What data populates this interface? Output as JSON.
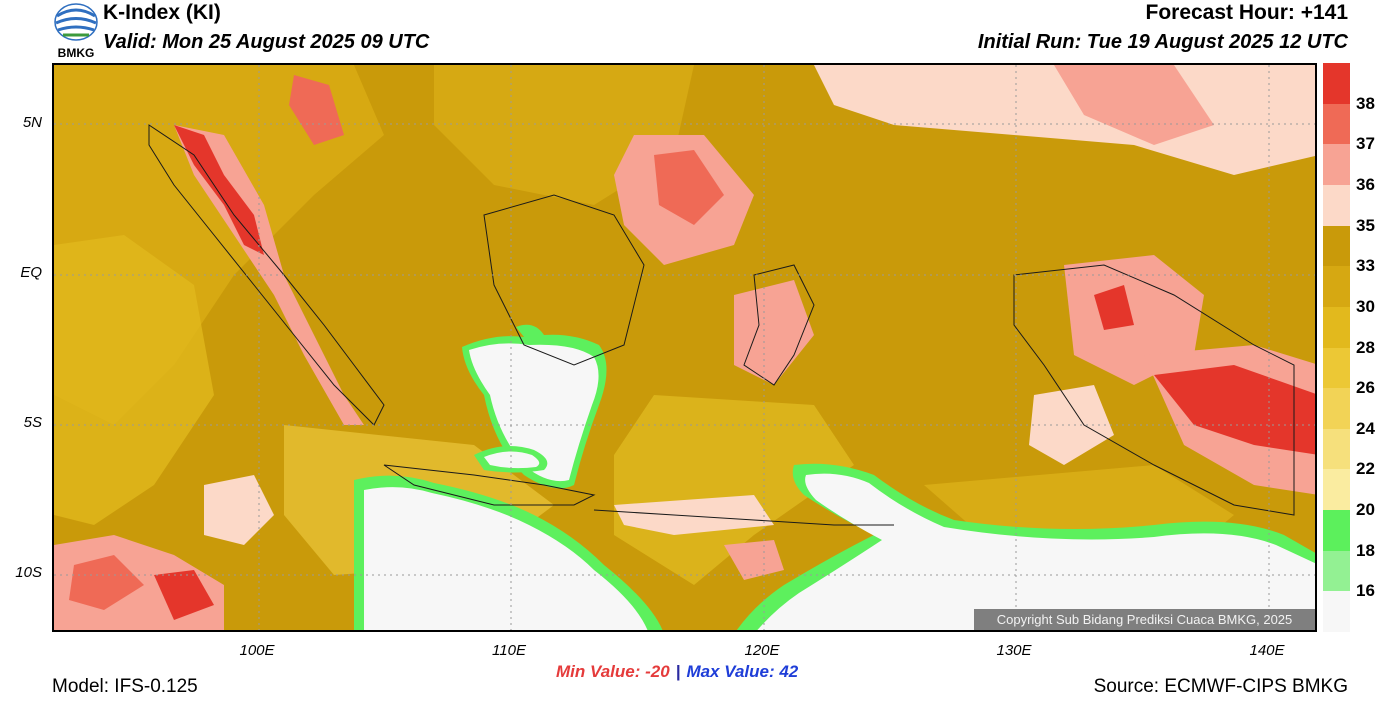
{
  "header": {
    "title": "K-Index (KI)",
    "valid": "Valid: Mon 25 August 2025 09 UTC",
    "forecast_hour": "Forecast Hour: +141",
    "initial_run": "Initial Run: Tue 19 August 2025 12 UTC"
  },
  "logo": {
    "text": "BMKG"
  },
  "map": {
    "lat_labels": [
      "5N",
      "EQ",
      "5S",
      "10S"
    ],
    "lon_labels": [
      "100E",
      "110E",
      "120E",
      "130E",
      "140E"
    ],
    "copyright": "Copyright Sub Bidang Prediksi Cuaca BMKG, 2025",
    "colors": {
      "low_white": "#f7f7f7",
      "green": "#5df05d",
      "mustard": "#c99a0a",
      "golden": "#e0b419",
      "red": "#e4362b",
      "pink": "#f08a80"
    }
  },
  "colorbar": {
    "labels": [
      "38",
      "37",
      "36",
      "35",
      "33",
      "30",
      "28",
      "26",
      "24",
      "22",
      "20",
      "18",
      "16"
    ],
    "colors": [
      "#e4362b",
      "#ef6a56",
      "#f7a394",
      "#fcd9c8",
      "#c99a0a",
      "#d6a812",
      "#e2b91d",
      "#ecc835",
      "#f2d356",
      "#f6e07c",
      "#faeca0",
      "#5cf05c",
      "#93f193",
      "#f7f7f7"
    ]
  },
  "stats": {
    "min": "Min Value: -20",
    "separator": "|",
    "max": "Max Value:  42"
  },
  "footer": {
    "model": "Model: IFS-0.125",
    "source": "Source: ECMWF-CIPS BMKG"
  }
}
